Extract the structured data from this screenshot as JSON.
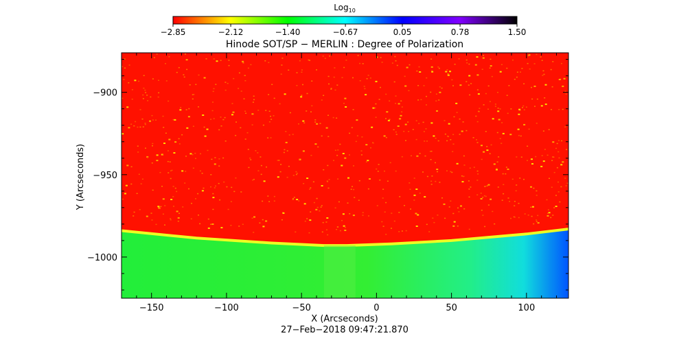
{
  "chart_data": {
    "type": "heatmap",
    "title": "Hinode SOT/SP − MERLIN : Degree of Polarization",
    "xlabel": "X (Arcseconds)",
    "ylabel": "Y (Arcseconds)",
    "xlim": [
      -170,
      128
    ],
    "ylim": [
      -1025,
      -876
    ],
    "x_ticks": [
      -150,
      -100,
      -50,
      0,
      50,
      100
    ],
    "x_tick_labels": [
      "−150",
      "−100",
      "−50",
      "0",
      "50",
      "100"
    ],
    "y_ticks": [
      -900,
      -950,
      -1000
    ],
    "y_tick_labels": [
      "−900",
      "−950",
      "−1000"
    ],
    "colorbar": {
      "label_base": "Log",
      "label_sub": "10",
      "range": [
        -2.85,
        1.5
      ],
      "ticks": [
        -2.85,
        -2.12,
        -1.4,
        -0.67,
        0.05,
        0.78,
        1.5
      ],
      "tick_labels": [
        "−2.85",
        "−2.12",
        "−1.40",
        "−0.67",
        "0.05",
        "0.78",
        "1.50"
      ],
      "colors": [
        "#ff0000",
        "#ffff00",
        "#00ff00",
        "#00ffff",
        "#0000ff",
        "#8000ff",
        "#000000"
      ]
    },
    "regions": {
      "disk_value": -2.85,
      "off_limb_value": -1.1,
      "limb_curve": {
        "x": [
          -170,
          -120,
          -70,
          -35,
          -20,
          10,
          50,
          100,
          128
        ],
        "y": [
          -984,
          -988.5,
          -991.5,
          -993,
          -993,
          -992,
          -990,
          -986,
          -983
        ]
      }
    },
    "date": "27−Feb−2018 09:47:21.870"
  }
}
